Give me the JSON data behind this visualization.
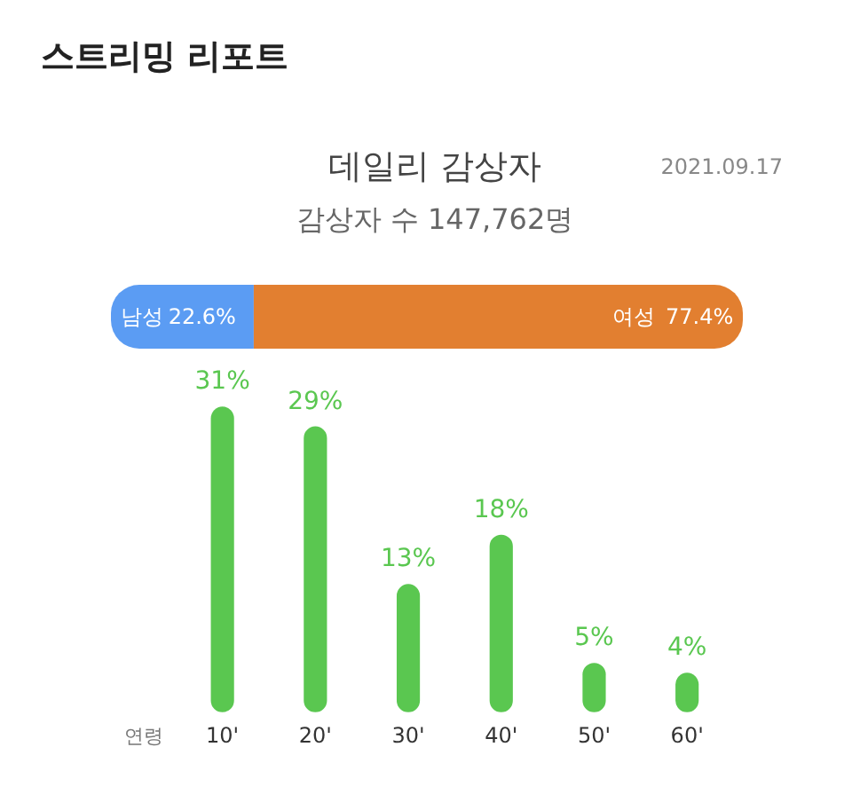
{
  "chart_data": [
    {
      "type": "bar",
      "orientation": "horizontal",
      "stacked": true,
      "title": "데일리 감상자",
      "subtitle": "감상자 수 147,762명",
      "annotations": [
        "스트리밍 리포트",
        "2021.09.17"
      ],
      "categories": [
        null
      ],
      "series": [
        {
          "name": "남성",
          "color": "#5b9cf3",
          "values": [
            22.6
          ],
          "value_labels": [
            "22.6%"
          ]
        },
        {
          "name": "여성",
          "color": "#e27f30",
          "values": [
            77.4
          ],
          "value_labels": [
            "77.4%"
          ]
        }
      ],
      "tick_labels": false
    },
    {
      "type": "bar",
      "xlabel": "연령",
      "categories": [
        "10'",
        "20'",
        "30'",
        "40'",
        "50'",
        "60'"
      ],
      "values": [
        31,
        29,
        13,
        18,
        5,
        4
      ],
      "value_labels": [
        "31%",
        "29%",
        "13%",
        "18%",
        "5%",
        "4%"
      ],
      "color": "#5ac750"
    }
  ]
}
